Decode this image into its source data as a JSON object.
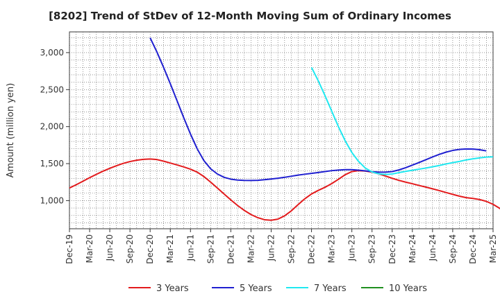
{
  "chart_data": {
    "type": "line",
    "title": "[8202]  Trend of StDev of 12-Month Moving Sum of Ordinary Incomes",
    "ylabel": "Amount (million yen)",
    "xlabel": "",
    "x_tick_labels": [
      "Dec-19",
      "Mar-20",
      "Jun-20",
      "Sep-20",
      "Dec-20",
      "Mar-21",
      "Jun-21",
      "Sep-21",
      "Dec-21",
      "Mar-22",
      "Jun-22",
      "Sep-22",
      "Dec-22",
      "Mar-23",
      "Jun-23",
      "Sep-23",
      "Dec-23",
      "Mar-24",
      "Jun-24",
      "Sep-24",
      "Dec-24",
      "Mar-25"
    ],
    "y_ticks": [
      1000,
      1500,
      2000,
      2500,
      3000
    ],
    "y_tick_labels": [
      "1,000",
      "1,500",
      "2,000",
      "2,500",
      "3,000"
    ],
    "ylim": [
      620,
      3280
    ],
    "grid": true,
    "legend_position": "bottom",
    "series": [
      {
        "name": "3 Years",
        "color": "#e31a1c",
        "start_index": 0,
        "values": [
          1170,
          1215,
          1262,
          1310,
          1355,
          1398,
          1437,
          1472,
          1503,
          1528,
          1546,
          1558,
          1562,
          1555,
          1533,
          1508,
          1482,
          1455,
          1425,
          1385,
          1325,
          1250,
          1170,
          1090,
          1010,
          935,
          868,
          812,
          770,
          742,
          735,
          750,
          795,
          862,
          945,
          1025,
          1090,
          1138,
          1180,
          1230,
          1288,
          1350,
          1392,
          1405,
          1400,
          1385,
          1362,
          1332,
          1302,
          1274,
          1250,
          1228,
          1205,
          1183,
          1160,
          1136,
          1110,
          1085,
          1060,
          1040,
          1030,
          1015,
          990,
          950,
          895,
          830,
          755,
          665
        ]
      },
      {
        "name": "5 Years",
        "color": "#1f1fd0",
        "start_index": 12,
        "values": [
          3200,
          3010,
          2800,
          2580,
          2350,
          2120,
          1900,
          1700,
          1540,
          1430,
          1360,
          1315,
          1290,
          1278,
          1273,
          1272,
          1275,
          1283,
          1292,
          1303,
          1315,
          1330,
          1345,
          1357,
          1368,
          1380,
          1393,
          1405,
          1413,
          1418,
          1418,
          1412,
          1402,
          1392,
          1385,
          1385,
          1393,
          1415,
          1445,
          1480,
          1515,
          1553,
          1590,
          1625,
          1655,
          1678,
          1692,
          1698,
          1697,
          1688,
          1672
        ]
      },
      {
        "name": "7 Years",
        "color": "#1fe8f0",
        "start_index": 36,
        "values": [
          2800,
          2620,
          2420,
          2210,
          2000,
          1810,
          1650,
          1530,
          1440,
          1388,
          1362,
          1353,
          1360,
          1378,
          1395,
          1410,
          1425,
          1440,
          1457,
          1475,
          1495,
          1513,
          1530,
          1550,
          1565,
          1578,
          1588,
          1592
        ]
      },
      {
        "name": "10 Years",
        "color": "#1f8f1f",
        "start_index": 0,
        "values": []
      }
    ]
  }
}
